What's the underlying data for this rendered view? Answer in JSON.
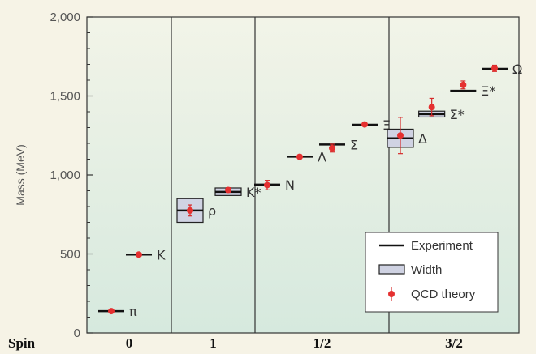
{
  "chart_data": {
    "type": "scatter",
    "ylabel": "Mass (MeV)",
    "ylim": [
      0,
      2000
    ],
    "yticks": [
      0,
      500,
      1000,
      1500,
      2000
    ],
    "ytick_labels": [
      "0",
      "500",
      "1,000",
      "1,500",
      "2,000"
    ],
    "spin_label": "Spin",
    "spin_groups": [
      "0",
      "1",
      "1/2",
      "3/2"
    ],
    "legend": {
      "position": "bottom-right",
      "entries": [
        "Experiment",
        "Width",
        "QCD theory"
      ]
    },
    "particles": [
      {
        "name": "π",
        "group": "0",
        "experiment": 138,
        "width_low": null,
        "width_high": null,
        "theory": 138,
        "err": 0
      },
      {
        "name": "K",
        "group": "0",
        "experiment": 496,
        "width_low": null,
        "width_high": null,
        "theory": 496,
        "err": 0
      },
      {
        "name": "ρ",
        "group": "1",
        "experiment": 775,
        "width_low": 700,
        "width_high": 850,
        "theory": 775,
        "err": 35
      },
      {
        "name": "K*",
        "group": "1",
        "experiment": 893,
        "width_low": 870,
        "width_high": 918,
        "theory": 905,
        "err": 15
      },
      {
        "name": "N",
        "group": "1/2",
        "experiment": 939,
        "width_low": null,
        "width_high": null,
        "theory": 936,
        "err": 30
      },
      {
        "name": "Λ",
        "group": "1/2",
        "experiment": 1116,
        "width_low": null,
        "width_high": null,
        "theory": 1115,
        "err": 12
      },
      {
        "name": "Σ",
        "group": "1/2",
        "experiment": 1193,
        "width_low": null,
        "width_high": null,
        "theory": 1170,
        "err": 25
      },
      {
        "name": "Ξ",
        "group": "1/2",
        "experiment": 1318,
        "width_low": null,
        "width_high": null,
        "theory": 1320,
        "err": 10
      },
      {
        "name": "Δ",
        "group": "3/2",
        "experiment": 1232,
        "width_low": 1175,
        "width_high": 1290,
        "theory": 1250,
        "err": 115
      },
      {
        "name": "Σ*",
        "group": "3/2",
        "experiment": 1385,
        "width_low": 1367,
        "width_high": 1404,
        "theory": 1430,
        "err": 55
      },
      {
        "name": "Ξ*",
        "group": "3/2",
        "experiment": 1533,
        "width_low": null,
        "width_high": null,
        "theory": 1570,
        "err": 25
      },
      {
        "name": "Ω",
        "group": "3/2",
        "experiment": 1672,
        "width_low": null,
        "width_high": null,
        "theory": 1675,
        "err": 20
      }
    ]
  }
}
